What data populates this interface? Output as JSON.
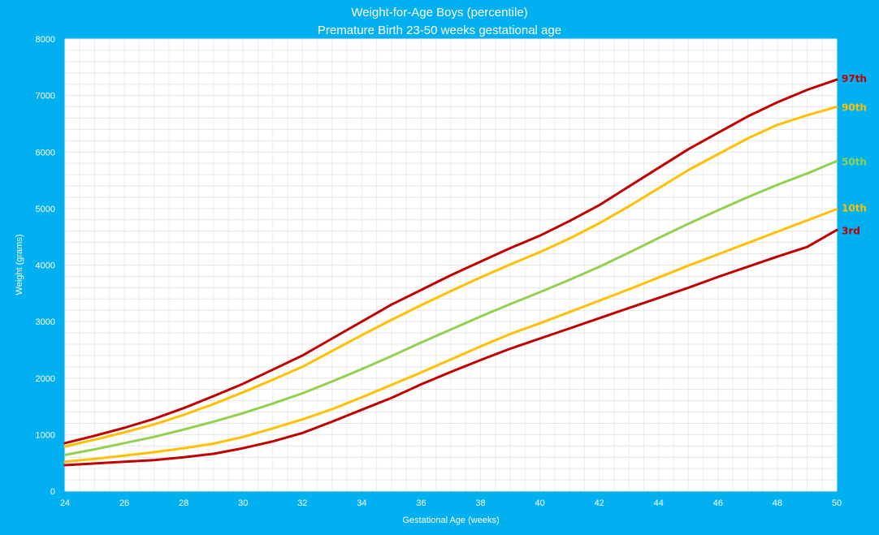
{
  "chart_data": {
    "type": "line",
    "title": "Weight-for-Age Boys (percentile)",
    "subtitle": "Premature Birth 23-50 weeks gestational age",
    "xlabel": "Gestational Age (weeks)",
    "ylabel": "Weight (grams)",
    "xlim": [
      24,
      50
    ],
    "ylim": [
      0,
      8000
    ],
    "x_ticks": [
      24,
      26,
      28,
      30,
      32,
      34,
      36,
      38,
      40,
      42,
      44,
      46,
      48,
      50
    ],
    "y_ticks": [
      0,
      1000,
      2000,
      3000,
      4000,
      5000,
      6000,
      7000,
      8000
    ],
    "grid": true,
    "x": [
      24,
      25,
      26,
      27,
      28,
      29,
      30,
      31,
      32,
      33,
      34,
      35,
      36,
      37,
      38,
      39,
      40,
      41,
      42,
      43,
      44,
      45,
      46,
      47,
      48,
      49,
      50
    ],
    "series": [
      {
        "name": "97th",
        "color": "#c00000",
        "values": [
          850,
          980,
          1120,
          1280,
          1470,
          1680,
          1900,
          2150,
          2400,
          2700,
          3000,
          3300,
          3560,
          3820,
          4060,
          4300,
          4520,
          4780,
          5060,
          5390,
          5720,
          6050,
          6340,
          6630,
          6880,
          7100,
          7280
        ]
      },
      {
        "name": "90th",
        "color": "#ffc000",
        "values": [
          790,
          910,
          1040,
          1180,
          1350,
          1540,
          1750,
          1970,
          2200,
          2480,
          2760,
          3030,
          3290,
          3540,
          3780,
          4010,
          4230,
          4470,
          4740,
          5040,
          5360,
          5680,
          5960,
          6240,
          6480,
          6650,
          6800
        ]
      },
      {
        "name": "50th",
        "color": "#92d050",
        "values": [
          640,
          740,
          850,
          960,
          1090,
          1230,
          1380,
          1550,
          1730,
          1940,
          2160,
          2390,
          2630,
          2860,
          3090,
          3310,
          3520,
          3740,
          3970,
          4220,
          4480,
          4730,
          4970,
          5200,
          5420,
          5620,
          5840
        ]
      },
      {
        "name": "10th",
        "color": "#ffc000",
        "values": [
          520,
          570,
          630,
          690,
          760,
          840,
          960,
          1110,
          1270,
          1450,
          1660,
          1880,
          2100,
          2330,
          2560,
          2780,
          2970,
          3170,
          3370,
          3570,
          3780,
          3990,
          4190,
          4390,
          4590,
          4790,
          4990
        ]
      },
      {
        "name": "3rd",
        "color": "#c00000",
        "values": [
          460,
          490,
          520,
          550,
          600,
          660,
          760,
          880,
          1030,
          1230,
          1440,
          1650,
          1890,
          2110,
          2320,
          2520,
          2700,
          2880,
          3060,
          3240,
          3420,
          3600,
          3790,
          3970,
          4150,
          4320,
          4620
        ]
      }
    ]
  }
}
